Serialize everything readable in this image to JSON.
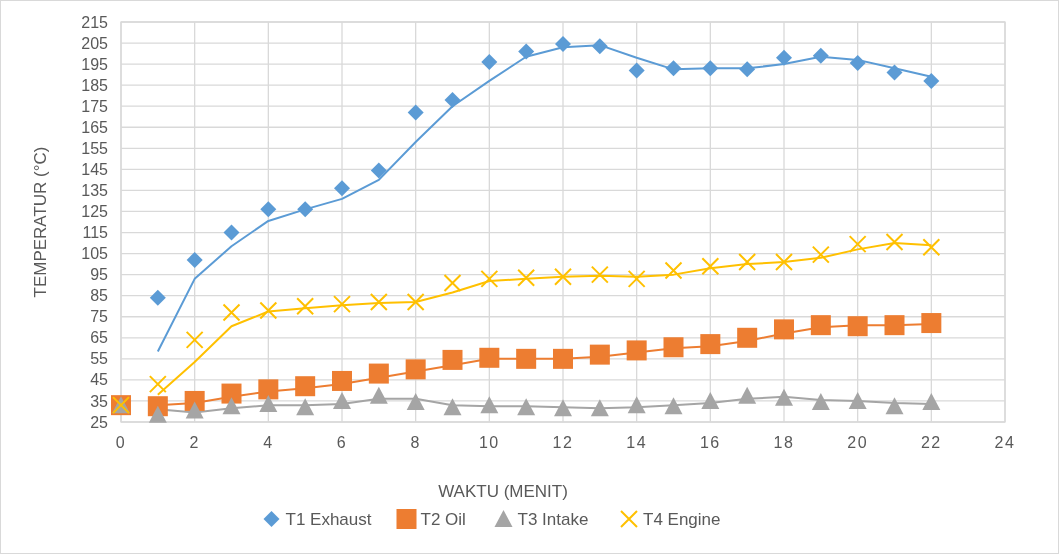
{
  "chart_data": {
    "type": "scatter",
    "xlabel": "WAKTU (MENIT)",
    "ylabel": "TEMPERATUR (°C)",
    "x": [
      0,
      1,
      2,
      3,
      4,
      5,
      6,
      7,
      8,
      9,
      10,
      11,
      12,
      13,
      14,
      15,
      16,
      17,
      18,
      19,
      20,
      21,
      22
    ],
    "xlim": [
      0,
      24
    ],
    "xticks": [
      0,
      2,
      4,
      6,
      8,
      10,
      12,
      14,
      16,
      18,
      20,
      22,
      24
    ],
    "ylim": [
      25,
      215
    ],
    "yticks": [
      25,
      35,
      45,
      55,
      65,
      75,
      85,
      95,
      105,
      115,
      125,
      135,
      145,
      155,
      165,
      175,
      185,
      195,
      205,
      215
    ],
    "grid": true,
    "legend": "bottom",
    "series": [
      {
        "name": "T1 Exhaust",
        "color": "#5b9bd5",
        "marker": "diamond",
        "values": [
          null,
          84,
          102,
          115,
          126,
          126,
          136,
          144.5,
          172,
          178,
          196,
          201,
          204.5,
          203.5,
          192,
          193,
          193,
          192.5,
          198,
          199,
          195.5,
          191,
          187
        ]
      },
      {
        "name": "T2 Oil",
        "color": "#ed7d31",
        "marker": "square",
        "values": [
          33,
          32.5,
          35,
          38.5,
          40.5,
          42,
          44.5,
          48,
          50,
          54.5,
          55.5,
          55,
          55,
          57,
          59,
          60.5,
          62,
          65,
          69,
          71,
          70.5,
          71,
          72
        ]
      },
      {
        "name": "T3 Intake",
        "color": "#a5a5a5",
        "marker": "triangle",
        "values": [
          33,
          28.5,
          30.5,
          32.5,
          33.5,
          32,
          35,
          37.5,
          34.5,
          32,
          33,
          32,
          31.5,
          31.5,
          33,
          32.5,
          35,
          37.5,
          36.5,
          34.5,
          35,
          32.5,
          34.5
        ]
      },
      {
        "name": "T4 Engine",
        "color": "#ffc000",
        "marker": "cross",
        "values": [
          33,
          43,
          64,
          77,
          78,
          80,
          81,
          82,
          82,
          91,
          93,
          93.5,
          94,
          95,
          93,
          97,
          99,
          101,
          101,
          104.5,
          109.5,
          110.5,
          108
        ]
      },
      {
        "type": "line",
        "color": "#5b9bd5",
        "x": [
          1,
          2,
          3,
          4,
          5,
          6,
          7,
          8,
          9,
          10,
          11,
          12,
          13,
          14,
          15,
          16,
          17,
          18,
          19,
          20,
          21,
          22
        ],
        "values": [
          58.5,
          93,
          108.5,
          120.5,
          126,
          131,
          140,
          158,
          175,
          187,
          198.5,
          203,
          204,
          198,
          192.5,
          193,
          193,
          195,
          198.5,
          197,
          193,
          189
        ]
      },
      {
        "type": "line",
        "color": "#ed7d31",
        "x": [
          1,
          2,
          3,
          4,
          5,
          6,
          7,
          8,
          9,
          10,
          11,
          12,
          13,
          14,
          15,
          16,
          17,
          18,
          19,
          20,
          21,
          22
        ],
        "values": [
          33,
          34,
          37,
          39.5,
          41,
          43,
          46,
          49,
          52,
          55,
          55,
          55,
          56,
          58,
          60,
          61,
          63.5,
          67,
          70,
          71,
          71,
          71.5
        ]
      },
      {
        "type": "line",
        "color": "#a5a5a5",
        "x": [
          1,
          2,
          3,
          4,
          5,
          6,
          7,
          8,
          9,
          10,
          11,
          12,
          13,
          14,
          15,
          16,
          17,
          18,
          19,
          20,
          21,
          22
        ],
        "values": [
          31,
          29.5,
          31.5,
          33,
          33,
          33.5,
          36,
          36,
          33,
          32.5,
          32.5,
          32,
          31.5,
          32,
          33,
          34,
          36,
          37,
          35.5,
          35,
          34,
          33.5
        ]
      },
      {
        "type": "line",
        "color": "#ffc000",
        "x": [
          1,
          2,
          3,
          4,
          5,
          6,
          7,
          8,
          9,
          10,
          11,
          12,
          13,
          14,
          15,
          16,
          17,
          18,
          19,
          20,
          21,
          22
        ],
        "values": [
          38,
          53.5,
          70.5,
          77.5,
          79,
          80.5,
          81.5,
          82,
          86.5,
          92,
          93,
          94,
          94.5,
          94,
          95,
          98,
          100,
          101,
          103,
          107,
          110,
          109
        ]
      }
    ]
  }
}
